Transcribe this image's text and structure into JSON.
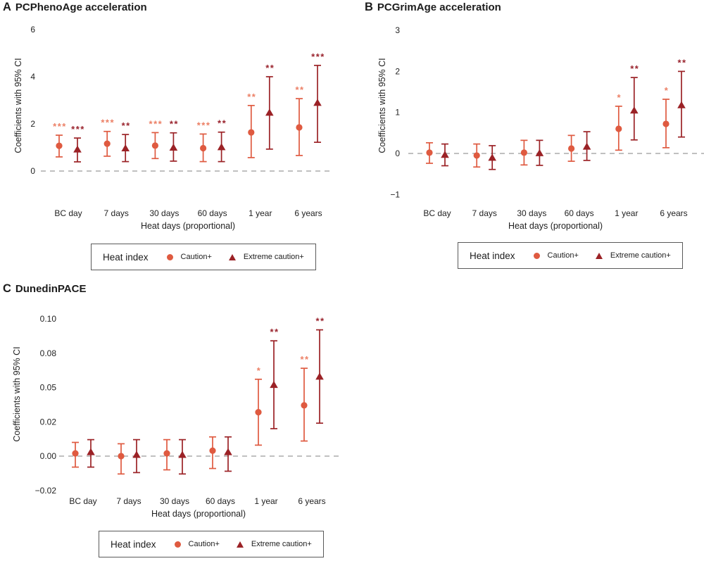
{
  "legend": {
    "title": "Heat index",
    "items": [
      {
        "label": "Caution+",
        "marker": "circle"
      },
      {
        "label": "Extreme caution+",
        "marker": "triangle"
      }
    ]
  },
  "colors": {
    "caution": "#df5a40",
    "caution_stars": "#ec8066",
    "extreme": "#9b2226",
    "extreme_stars": "#9a242e",
    "zero_line": "#ababab",
    "text": "#1c1c1c"
  },
  "chart_data": [
    {
      "type": "scatter",
      "panel": "A",
      "title": "PCPhenoAge acceleration",
      "ylabel": "Coefficients with 95% CI",
      "xlabel": "Heat days (proportional)",
      "categories": [
        "BC day",
        "7 days",
        "30 days",
        "60 days",
        "1 year",
        "6 years"
      ],
      "yticks": [
        {
          "v": 0,
          "label": "0"
        },
        {
          "v": 2,
          "label": "2"
        },
        {
          "v": 4,
          "label": "4"
        },
        {
          "v": 6,
          "label": "6"
        }
      ],
      "ylim": [
        -0.7,
        6.1
      ],
      "grid": false,
      "zero_line": "dashed",
      "legend_position": "bottom",
      "series": [
        {
          "name": "Caution+",
          "marker": "circle",
          "color": "#df5a40",
          "star_color": "#ec8066",
          "points": [
            {
              "est": 1.07,
              "lo": 0.6,
              "hi": 1.52,
              "sig": "***"
            },
            {
              "est": 1.16,
              "lo": 0.63,
              "hi": 1.68,
              "sig": "***"
            },
            {
              "est": 1.08,
              "lo": 0.53,
              "hi": 1.63,
              "sig": "***"
            },
            {
              "est": 0.97,
              "lo": 0.4,
              "hi": 1.57,
              "sig": "***"
            },
            {
              "est": 1.64,
              "lo": 0.57,
              "hi": 2.78,
              "sig": "**"
            },
            {
              "est": 1.85,
              "lo": 0.66,
              "hi": 3.07,
              "sig": "**"
            }
          ]
        },
        {
          "name": "Extreme caution+",
          "marker": "triangle",
          "color": "#9b2226",
          "star_color": "#9a242e",
          "points": [
            {
              "est": 0.92,
              "lo": 0.39,
              "hi": 1.4,
              "sig": "***"
            },
            {
              "est": 0.97,
              "lo": 0.4,
              "hi": 1.55,
              "sig": "**"
            },
            {
              "est": 1.0,
              "lo": 0.42,
              "hi": 1.62,
              "sig": "**"
            },
            {
              "est": 1.02,
              "lo": 0.4,
              "hi": 1.65,
              "sig": "**"
            },
            {
              "est": 2.48,
              "lo": 0.93,
              "hi": 4.0,
              "sig": "**"
            },
            {
              "est": 2.9,
              "lo": 1.22,
              "hi": 4.48,
              "sig": "***"
            }
          ]
        }
      ]
    },
    {
      "type": "scatter",
      "panel": "B",
      "title": "PCGrimAge acceleration",
      "ylabel": "Coefficients with 95% CI",
      "xlabel": "Heat days (proportional)",
      "categories": [
        "BC day",
        "7 days",
        "30 days",
        "60 days",
        "1 year",
        "6 years"
      ],
      "yticks": [
        {
          "v": -1,
          "label": "−1"
        },
        {
          "v": 0,
          "label": "0"
        },
        {
          "v": 1,
          "label": "1"
        },
        {
          "v": 2,
          "label": "2"
        },
        {
          "v": 3,
          "label": "3"
        }
      ],
      "ylim": [
        -1.1,
        3.05
      ],
      "grid": false,
      "zero_line": "dashed",
      "legend_position": "bottom",
      "series": [
        {
          "name": "Caution+",
          "marker": "circle",
          "color": "#df5a40",
          "star_color": "#ec8066",
          "points": [
            {
              "est": 0.02,
              "lo": -0.24,
              "hi": 0.26,
              "sig": ""
            },
            {
              "est": -0.05,
              "lo": -0.33,
              "hi": 0.23,
              "sig": ""
            },
            {
              "est": 0.02,
              "lo": -0.28,
              "hi": 0.32,
              "sig": ""
            },
            {
              "est": 0.12,
              "lo": -0.19,
              "hi": 0.44,
              "sig": ""
            },
            {
              "est": 0.6,
              "lo": 0.08,
              "hi": 1.15,
              "sig": "*"
            },
            {
              "est": 0.72,
              "lo": 0.14,
              "hi": 1.32,
              "sig": "*"
            }
          ]
        },
        {
          "name": "Extreme caution+",
          "marker": "triangle",
          "color": "#9b2226",
          "star_color": "#9a242e",
          "points": [
            {
              "est": -0.03,
              "lo": -0.3,
              "hi": 0.23,
              "sig": ""
            },
            {
              "est": -0.1,
              "lo": -0.39,
              "hi": 0.19,
              "sig": ""
            },
            {
              "est": 0.01,
              "lo": -0.29,
              "hi": 0.32,
              "sig": ""
            },
            {
              "est": 0.17,
              "lo": -0.17,
              "hi": 0.53,
              "sig": ""
            },
            {
              "est": 1.05,
              "lo": 0.33,
              "hi": 1.85,
              "sig": "**"
            },
            {
              "est": 1.18,
              "lo": 0.4,
              "hi": 2.0,
              "sig": "**"
            }
          ]
        }
      ]
    },
    {
      "type": "scatter",
      "panel": "C",
      "title": "DunedinPACE",
      "ylabel": "Coefficients with 95% CI",
      "xlabel": "Heat days (proportional)",
      "categories": [
        "BC day",
        "7 days",
        "30 days",
        "60 days",
        "1 year",
        "6 years"
      ],
      "yticks": [
        {
          "v": -0.025,
          "label": "−0.02"
        },
        {
          "v": 0,
          "label": "0.00"
        },
        {
          "v": 0.025,
          "label": "0.02"
        },
        {
          "v": 0.05,
          "label": "0.05"
        },
        {
          "v": 0.075,
          "label": "0.08"
        },
        {
          "v": 0.1,
          "label": "0.10"
        }
      ],
      "ylim": [
        -0.032,
        0.105
      ],
      "grid": false,
      "zero_line": "dashed",
      "legend_position": "bottom",
      "series": [
        {
          "name": "Caution+",
          "marker": "circle",
          "color": "#df5a40",
          "star_color": "#ec8066",
          "points": [
            {
              "est": 0.002,
              "lo": -0.008,
              "hi": 0.01,
              "sig": ""
            },
            {
              "est": 0.0,
              "lo": -0.013,
              "hi": 0.009,
              "sig": ""
            },
            {
              "est": 0.002,
              "lo": -0.01,
              "hi": 0.012,
              "sig": ""
            },
            {
              "est": 0.004,
              "lo": -0.009,
              "hi": 0.014,
              "sig": ""
            },
            {
              "est": 0.032,
              "lo": 0.008,
              "hi": 0.056,
              "sig": "*"
            },
            {
              "est": 0.037,
              "lo": 0.011,
              "hi": 0.064,
              "sig": "**"
            }
          ]
        },
        {
          "name": "Extreme caution+",
          "marker": "triangle",
          "color": "#9b2226",
          "star_color": "#9a242e",
          "points": [
            {
              "est": 0.003,
              "lo": -0.008,
              "hi": 0.012,
              "sig": ""
            },
            {
              "est": 0.001,
              "lo": -0.012,
              "hi": 0.012,
              "sig": ""
            },
            {
              "est": 0.001,
              "lo": -0.013,
              "hi": 0.012,
              "sig": ""
            },
            {
              "est": 0.003,
              "lo": -0.011,
              "hi": 0.014,
              "sig": ""
            },
            {
              "est": 0.052,
              "lo": 0.02,
              "hi": 0.084,
              "sig": "**"
            },
            {
              "est": 0.058,
              "lo": 0.024,
              "hi": 0.092,
              "sig": "**"
            }
          ]
        }
      ]
    }
  ]
}
